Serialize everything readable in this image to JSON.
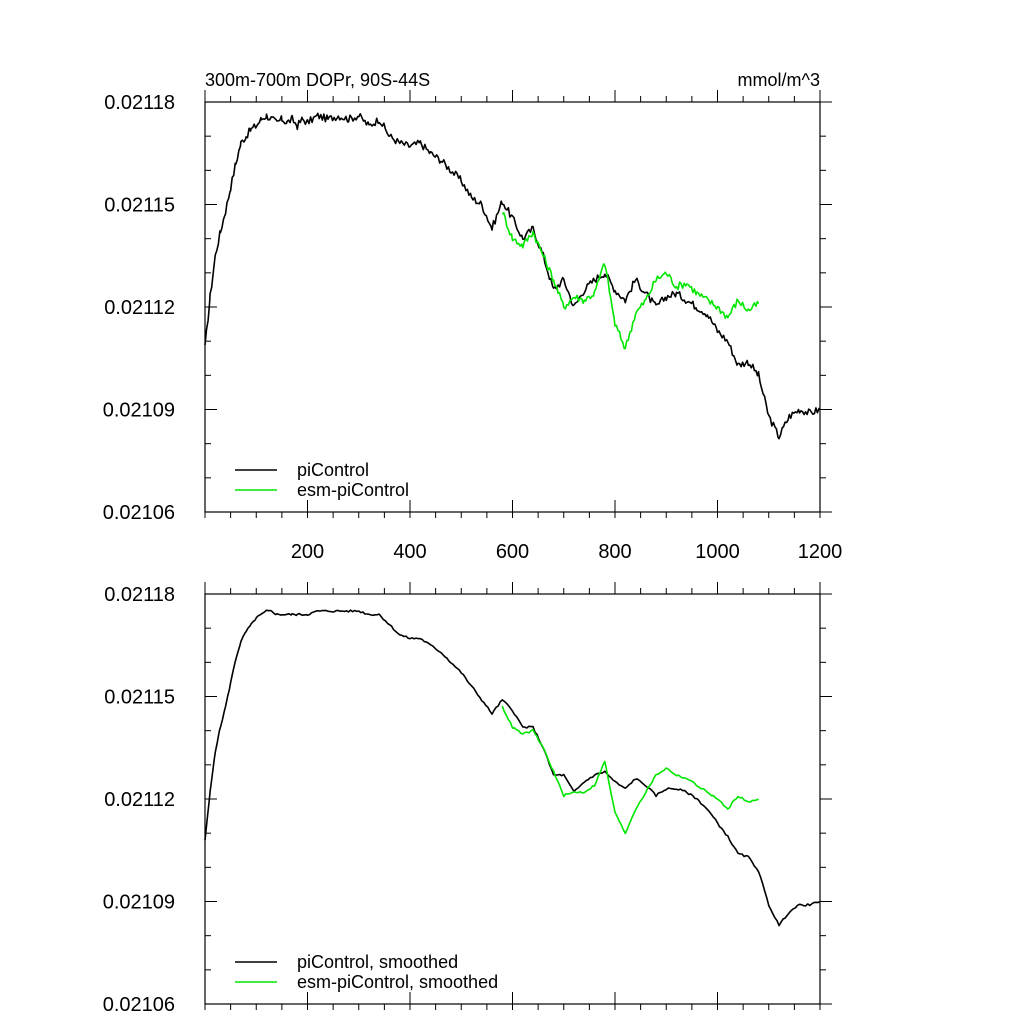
{
  "figure": {
    "title_left": "300m-700m DOPr, 90S-44S",
    "title_right": "mmol/m^3"
  },
  "colors": {
    "picontrol": "#000000",
    "esm_picontrol": "#00e600"
  },
  "chart_data": [
    {
      "type": "line",
      "title": "300m-700m DOPr, 90S-44S",
      "units": "mmol/m^3",
      "xlim": [
        0,
        1200
      ],
      "ylim": [
        0.02106,
        0.02118
      ],
      "xticks": [
        200,
        400,
        600,
        800,
        1000,
        1200
      ],
      "xtick_labels": [
        "200",
        "400",
        "600",
        "800",
        "1000",
        "1200"
      ],
      "yticks": [
        0.02106,
        0.02109,
        0.02112,
        0.02115,
        0.02118
      ],
      "ytick_labels": [
        "0.02106",
        "0.02109",
        "0.02112",
        "0.02115",
        "0.02118"
      ],
      "legend": [
        "piControl",
        "esm-piControl"
      ],
      "legend_position": "bottom-left",
      "series": [
        {
          "name": "piControl",
          "color": "#000000",
          "x": [
            0,
            10,
            20,
            30,
            40,
            50,
            60,
            70,
            80,
            90,
            100,
            110,
            120,
            130,
            140,
            150,
            160,
            170,
            180,
            190,
            200,
            220,
            240,
            260,
            280,
            300,
            320,
            340,
            360,
            380,
            400,
            420,
            440,
            460,
            480,
            500,
            520,
            540,
            560,
            580,
            600,
            620,
            640,
            660,
            680,
            700,
            720,
            740,
            760,
            780,
            800,
            820,
            840,
            860,
            880,
            900,
            920,
            940,
            960,
            980,
            1000,
            1020,
            1040,
            1060,
            1080,
            1100,
            1120,
            1140,
            1160,
            1180,
            1200
          ],
          "y": [
            0.021108,
            0.021123,
            0.021135,
            0.021142,
            0.021148,
            0.021155,
            0.021162,
            0.021168,
            0.02117,
            0.021172,
            0.021173,
            0.021175,
            0.021176,
            0.021175,
            0.021174,
            0.021175,
            0.021174,
            0.021175,
            0.021173,
            0.021175,
            0.021174,
            0.021176,
            0.021175,
            0.021176,
            0.021175,
            0.021176,
            0.021173,
            0.021175,
            0.02117,
            0.021168,
            0.021167,
            0.021168,
            0.021165,
            0.021163,
            0.02116,
            0.021157,
            0.021152,
            0.02115,
            0.021143,
            0.021151,
            0.021146,
            0.02114,
            0.021143,
            0.021135,
            0.021125,
            0.021128,
            0.02112,
            0.021125,
            0.021128,
            0.02113,
            0.021125,
            0.021122,
            0.021128,
            0.021124,
            0.02112,
            0.021123,
            0.021124,
            0.021122,
            0.02112,
            0.021118,
            0.021113,
            0.02111,
            0.021103,
            0.021104,
            0.0211,
            0.021088,
            0.021082,
            0.021088,
            0.02109,
            0.021089,
            0.02109
          ]
        },
        {
          "name": "esm-piControl",
          "color": "#00e600",
          "x": [
            580,
            600,
            620,
            640,
            660,
            680,
            700,
            720,
            740,
            760,
            780,
            800,
            820,
            840,
            860,
            880,
            900,
            920,
            940,
            960,
            980,
            1000,
            1020,
            1040,
            1060,
            1080
          ],
          "y": [
            0.021148,
            0.02114,
            0.021138,
            0.021142,
            0.021135,
            0.021128,
            0.02112,
            0.021123,
            0.021122,
            0.021124,
            0.021133,
            0.021115,
            0.021108,
            0.021118,
            0.021122,
            0.021128,
            0.02113,
            0.021126,
            0.021127,
            0.021124,
            0.021122,
            0.02112,
            0.021117,
            0.021122,
            0.021119,
            0.021121
          ]
        }
      ]
    },
    {
      "type": "line",
      "xlim": [
        0,
        1200
      ],
      "ylim": [
        0.02106,
        0.02118
      ],
      "yticks": [
        0.02106,
        0.02109,
        0.02112,
        0.02115,
        0.02118
      ],
      "ytick_labels": [
        "0.02106",
        "0.02109",
        "0.02112",
        "0.02115",
        "0.02118"
      ],
      "legend": [
        "piControl, smoothed",
        "esm-piControl, smoothed"
      ],
      "legend_position": "bottom-left",
      "series": [
        {
          "name": "piControl, smoothed",
          "color": "#000000",
          "x": [
            0,
            10,
            20,
            30,
            40,
            50,
            60,
            70,
            80,
            90,
            100,
            110,
            120,
            130,
            140,
            150,
            160,
            170,
            180,
            190,
            200,
            220,
            240,
            260,
            280,
            300,
            320,
            340,
            360,
            380,
            400,
            420,
            440,
            460,
            480,
            500,
            520,
            540,
            560,
            580,
            600,
            620,
            640,
            660,
            680,
            700,
            720,
            740,
            760,
            780,
            800,
            820,
            840,
            860,
            880,
            900,
            920,
            940,
            960,
            980,
            1000,
            1020,
            1040,
            1060,
            1080,
            1100,
            1120,
            1140,
            1160,
            1180,
            1200
          ],
          "y": [
            0.021108,
            0.021122,
            0.021134,
            0.021141,
            0.021147,
            0.021154,
            0.021161,
            0.021166,
            0.021169,
            0.021171,
            0.021173,
            0.021174,
            0.021175,
            0.021175,
            0.021174,
            0.021174,
            0.021174,
            0.021174,
            0.021174,
            0.021174,
            0.021174,
            0.021175,
            0.021175,
            0.021175,
            0.021175,
            0.021175,
            0.021174,
            0.021174,
            0.021171,
            0.021168,
            0.021167,
            0.021167,
            0.021165,
            0.021163,
            0.02116,
            0.021157,
            0.021153,
            0.021149,
            0.021145,
            0.021149,
            0.021146,
            0.021141,
            0.021141,
            0.021135,
            0.021127,
            0.021127,
            0.021122,
            0.021125,
            0.021127,
            0.021128,
            0.021125,
            0.021123,
            0.021126,
            0.021124,
            0.021121,
            0.021123,
            0.021123,
            0.021122,
            0.02112,
            0.021117,
            0.021113,
            0.021109,
            0.021104,
            0.021103,
            0.021099,
            0.021089,
            0.021083,
            0.021087,
            0.021089,
            0.021089,
            0.02109
          ]
        },
        {
          "name": "esm-piControl, smoothed",
          "color": "#00e600",
          "x": [
            580,
            600,
            620,
            640,
            660,
            680,
            700,
            720,
            740,
            760,
            780,
            800,
            820,
            840,
            860,
            880,
            900,
            920,
            940,
            960,
            980,
            1000,
            1020,
            1040,
            1060,
            1080
          ],
          "y": [
            0.021147,
            0.021141,
            0.021139,
            0.02114,
            0.021135,
            0.021128,
            0.021121,
            0.021122,
            0.021122,
            0.021124,
            0.021131,
            0.021116,
            0.02111,
            0.021117,
            0.021122,
            0.021127,
            0.021129,
            0.021127,
            0.021126,
            0.021124,
            0.021122,
            0.02112,
            0.021117,
            0.021121,
            0.021119,
            0.02112
          ]
        }
      ]
    }
  ]
}
